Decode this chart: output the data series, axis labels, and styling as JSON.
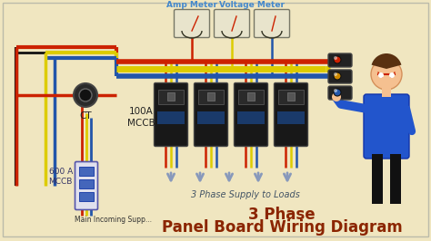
{
  "title_line1": "3 Phase",
  "title_line2": "Panel Board Wiring Diagram",
  "bg_color": "#f0e6c0",
  "title_color": "#8B2500",
  "label_color": "#4488cc",
  "wire_colors": {
    "red": "#cc2200",
    "yellow": "#ddcc00",
    "blue": "#2255aa",
    "black": "#111111",
    "gray": "#888888"
  },
  "labels": {
    "amp_meter": "Amp Meter",
    "voltage_meter": "Voltage Meter",
    "ct": "CT",
    "mccb_100": "100A\nMCCB",
    "mccb_600": "600 A\nMCCB",
    "main_supply": "Main Incoming Supp...",
    "phase_supply": "3 Phase Supply to Loads"
  },
  "figsize": [
    4.74,
    2.66
  ],
  "dpi": 100
}
